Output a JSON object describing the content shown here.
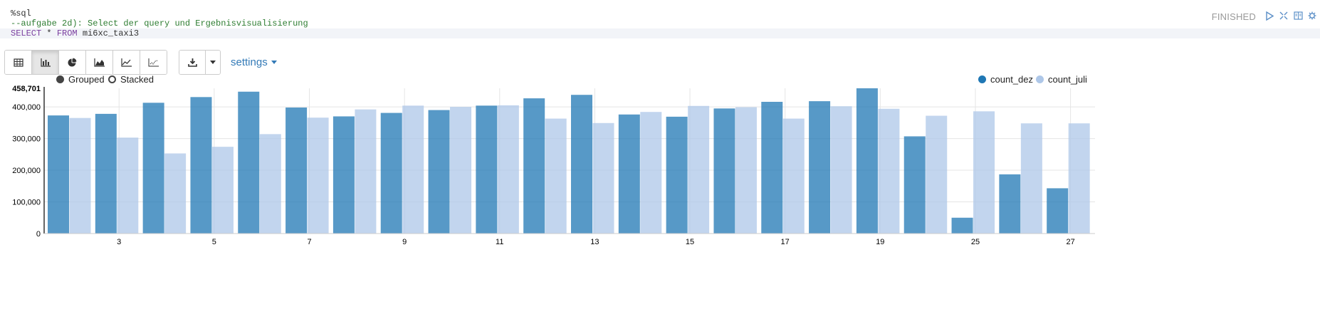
{
  "paragraph": {
    "line1": "%sql",
    "line2": "--aufgabe 2d): Select der query und Ergebnisvisualisierung",
    "line3_select": "SELECT",
    "line3_star": " * ",
    "line3_from": "FROM",
    "line3_table": " mi6xc_taxi3",
    "status": "FINISHED"
  },
  "toolbar": {
    "buttons": [
      "table-icon",
      "bar-chart-icon",
      "pie-chart-icon",
      "area-chart-icon",
      "line-chart-icon",
      "scatter-chart-icon"
    ],
    "active": "bar-chart-icon",
    "settings_label": "settings"
  },
  "controls": {
    "grouped_label": "Grouped",
    "stacked_label": "Stacked",
    "mode": "grouped"
  },
  "chart_data": {
    "type": "bar",
    "x": [
      2,
      3,
      4,
      5,
      6,
      7,
      8,
      9,
      10,
      11,
      12,
      13,
      14,
      15,
      16,
      17,
      18,
      19,
      24,
      25,
      26,
      27
    ],
    "tick_labels": [
      "3",
      "5",
      "7",
      "9",
      "11",
      "13",
      "15",
      "17",
      "19",
      "25",
      "27"
    ],
    "series": [
      {
        "name": "count_dez",
        "color": "#1f77b4",
        "values": [
          373000,
          378000,
          413000,
          431000,
          448000,
          398000,
          370000,
          381000,
          390000,
          404000,
          427000,
          438000,
          376000,
          369000,
          395000,
          416000,
          418000,
          458701,
          307000,
          50000,
          187000,
          143000
        ]
      },
      {
        "name": "count_juli",
        "color": "#aec7e8",
        "values": [
          365000,
          303000,
          253000,
          274000,
          314000,
          366000,
          392000,
          404000,
          400000,
          405000,
          363000,
          349000,
          384000,
          403000,
          399000,
          363000,
          402000,
          394000,
          372000,
          386000,
          348000,
          348000
        ]
      }
    ],
    "ymax_label": "458,701",
    "yticks": [
      0,
      100000,
      200000,
      300000,
      400000
    ],
    "ytick_labels": [
      "0",
      "100,000",
      "200,000",
      "300,000",
      "400,000"
    ],
    "ylim": [
      0,
      458701
    ],
    "grid": true,
    "legend_position": "top-right"
  }
}
